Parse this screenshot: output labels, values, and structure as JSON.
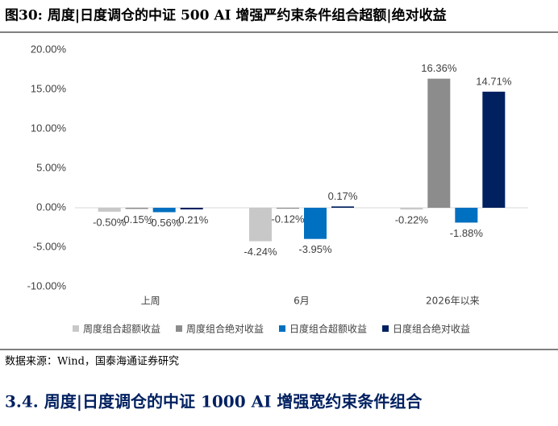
{
  "figure_title": "图30:  周度|日度调仓的中证 500 AI 增强严约束条件组合超额|绝对收益",
  "chart_data": {
    "type": "bar",
    "categories": [
      "上周",
      "6月",
      "2026年以来"
    ],
    "series": [
      {
        "name": "周度组合超额收益",
        "color": "#c8c8c8",
        "values": [
          -0.5,
          -4.24,
          -0.22
        ],
        "value_labels": [
          "-0.50%",
          "-4.24%",
          "-0.22%"
        ]
      },
      {
        "name": "周度组合绝对收益",
        "color": "#8c8c8c",
        "values": [
          -0.15,
          -0.12,
          16.36
        ],
        "value_labels": [
          "-0.15%",
          "-0.12%",
          "16.36%"
        ]
      },
      {
        "name": "日度组合超额收益",
        "color": "#0070c0",
        "values": [
          -0.56,
          -3.95,
          -1.88
        ],
        "value_labels": [
          "-0.56%",
          "-3.95%",
          "-1.88%"
        ]
      },
      {
        "name": "日度组合绝对收益",
        "color": "#002060",
        "values": [
          -0.21,
          0.17,
          14.71
        ],
        "value_labels": [
          "-0.21%",
          "0.17%",
          "14.71%"
        ]
      }
    ],
    "ylim": [
      -10,
      20
    ],
    "yticks": [
      {
        "value": -10,
        "label": "-10.00%"
      },
      {
        "value": -5,
        "label": "-5.00%"
      },
      {
        "value": 0,
        "label": "0.00%"
      },
      {
        "value": 5,
        "label": "5.00%"
      },
      {
        "value": 10,
        "label": "10.00%"
      },
      {
        "value": 15,
        "label": "15.00%"
      },
      {
        "value": 20,
        "label": "20.00%"
      }
    ],
    "legend": "bottom"
  },
  "source": "数据来源：Wind，国泰海通证券研究",
  "section_heading": "3.4.   周度|日度调仓的中证 1000 AI 增强宽约束条件组合"
}
